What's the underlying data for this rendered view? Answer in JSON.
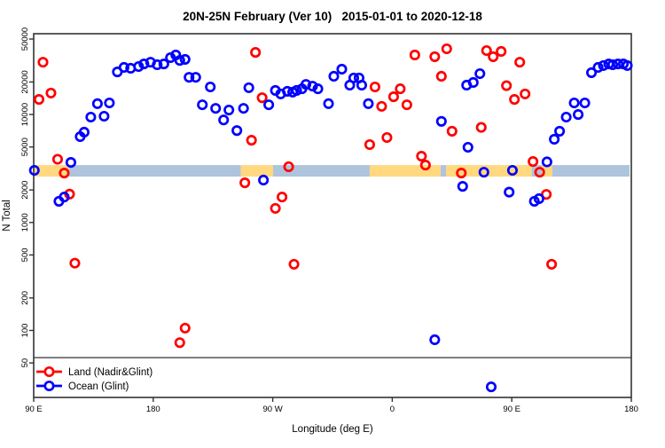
{
  "title": "20N-25N February (Ver 10)   2015-01-01 to 2020-12-18",
  "legend": [
    {
      "label": "Land (Nadir&Glint)",
      "color": "#ff0000"
    },
    {
      "label": "Ocean (Glint)",
      "color": "#0000ff"
    }
  ],
  "colors": {
    "land": "#ff0000",
    "ocean": "#0000ff",
    "band_land": "#ffd87f",
    "band_ocean": "#aec3dc",
    "axis": "#333333"
  },
  "chart_data": {
    "type": "scatter",
    "title": "20N-25N February (Ver 10)   2015-01-01 to 2020-12-18",
    "xlabel": "Longitude (deg E)",
    "ylabel": "N Total",
    "x_axis": {
      "range": [
        90,
        540
      ],
      "tick_lons": [
        90,
        180,
        270,
        360,
        450,
        540
      ],
      "tick_labels": [
        "90 E",
        "180",
        "90 W",
        "0",
        "90 E",
        "180"
      ]
    },
    "y_axis": {
      "scale": "log",
      "range": [
        24,
        56000
      ],
      "ticks": [
        50,
        100,
        200,
        500,
        1000,
        2000,
        5000,
        10000,
        20000,
        50000
      ],
      "tick_labels": [
        "50",
        "100",
        "200",
        "500",
        "1000",
        "2000",
        "5000",
        "10000",
        "20000",
        "50000"
      ]
    },
    "reference_line": {
      "value": 56
    },
    "band": {
      "value_top": 3400,
      "value_bottom": 2660,
      "segments": [
        {
          "from": 90.0,
          "to": 116.7,
          "type": "land"
        },
        {
          "from": 116.7,
          "to": 246.0,
          "type": "ocean"
        },
        {
          "from": 246.0,
          "to": 270.3,
          "type": "land"
        },
        {
          "from": 270.3,
          "to": 343.0,
          "type": "ocean"
        },
        {
          "from": 343.0,
          "to": 396.5,
          "type": "land"
        },
        {
          "from": 396.5,
          "to": 400.5,
          "type": "ocean"
        },
        {
          "from": 400.5,
          "to": 465.0,
          "type": "land"
        },
        {
          "from": 465.0,
          "to": 472.6,
          "type": "ocean"
        },
        {
          "from": 472.6,
          "to": 480.6,
          "type": "land"
        },
        {
          "from": 480.6,
          "to": 538.7,
          "type": "ocean"
        }
      ]
    },
    "series": [
      {
        "name": "Land (Nadir&Glint)",
        "color": "#ff0000",
        "points": [
          [
            97,
            30500
          ],
          [
            94,
            13800
          ],
          [
            103,
            15800
          ],
          [
            108,
            3850
          ],
          [
            113,
            2870
          ],
          [
            117,
            1830
          ],
          [
            121,
            420
          ],
          [
            200,
            77
          ],
          [
            204,
            105
          ],
          [
            249,
            2330
          ],
          [
            254,
            5780
          ],
          [
            257,
            37600
          ],
          [
            262,
            14300
          ],
          [
            272,
            1350
          ],
          [
            277,
            1720
          ],
          [
            282,
            3280
          ],
          [
            286,
            410
          ],
          [
            343,
            5260
          ],
          [
            347,
            18000
          ],
          [
            352,
            11900
          ],
          [
            356,
            6120
          ],
          [
            361,
            14600
          ],
          [
            366,
            17300
          ],
          [
            371,
            12300
          ],
          [
            377,
            35600
          ],
          [
            382,
            4110
          ],
          [
            385,
            3400
          ],
          [
            392,
            34300
          ],
          [
            397,
            22600
          ],
          [
            401,
            40600
          ],
          [
            405,
            7000
          ],
          [
            412,
            2870
          ],
          [
            427,
            7600
          ],
          [
            431,
            39100
          ],
          [
            436,
            34300
          ],
          [
            442,
            38400
          ],
          [
            446,
            18500
          ],
          [
            452,
            13800
          ],
          [
            456,
            30500
          ],
          [
            460,
            15500
          ],
          [
            466,
            3670
          ],
          [
            471,
            2920
          ],
          [
            476,
            1820
          ],
          [
            480,
            410
          ]
        ]
      },
      {
        "name": "Ocean (Glint)",
        "color": "#0000ff",
        "points": [
          [
            90.5,
            3040
          ],
          [
            109,
            1570
          ],
          [
            113,
            1720
          ],
          [
            118,
            3600
          ],
          [
            125,
            6240
          ],
          [
            128,
            6860
          ],
          [
            133,
            9460
          ],
          [
            138,
            12600
          ],
          [
            143,
            9640
          ],
          [
            147,
            12800
          ],
          [
            153,
            24800
          ],
          [
            158,
            27300
          ],
          [
            163,
            26800
          ],
          [
            169,
            27800
          ],
          [
            173,
            29400
          ],
          [
            178,
            30500
          ],
          [
            183,
            28900
          ],
          [
            188,
            29400
          ],
          [
            193,
            33600
          ],
          [
            197,
            35600
          ],
          [
            200,
            31700
          ],
          [
            204,
            32400
          ],
          [
            207,
            22100
          ],
          [
            212,
            22100
          ],
          [
            217,
            12300
          ],
          [
            223,
            18000
          ],
          [
            227,
            11400
          ],
          [
            233,
            8900
          ],
          [
            237,
            11000
          ],
          [
            243,
            7100
          ],
          [
            248,
            11400
          ],
          [
            252,
            17700
          ],
          [
            263,
            2470
          ],
          [
            267,
            12300
          ],
          [
            272,
            16700
          ],
          [
            276,
            15500
          ],
          [
            281,
            16400
          ],
          [
            285,
            16100
          ],
          [
            288,
            16700
          ],
          [
            292,
            17300
          ],
          [
            295,
            19000
          ],
          [
            300,
            18300
          ],
          [
            304,
            17300
          ],
          [
            312,
            12600
          ],
          [
            316,
            22600
          ],
          [
            322,
            26300
          ],
          [
            328,
            18700
          ],
          [
            331,
            21800
          ],
          [
            335,
            21800
          ],
          [
            337,
            18700
          ],
          [
            342,
            12600
          ],
          [
            392,
            82
          ],
          [
            397,
            8640
          ],
          [
            413,
            2160
          ],
          [
            416,
            18700
          ],
          [
            417,
            4970
          ],
          [
            421,
            19800
          ],
          [
            426,
            23900
          ],
          [
            429,
            2920
          ],
          [
            434.5,
            30
          ],
          [
            448,
            1910
          ],
          [
            450.5,
            3040
          ],
          [
            467,
            1570
          ],
          [
            470.5,
            1660
          ],
          [
            476.5,
            3640
          ],
          [
            482,
            5900
          ],
          [
            486,
            7000
          ],
          [
            491,
            9460
          ],
          [
            497,
            12800
          ],
          [
            500,
            10000
          ],
          [
            505,
            12800
          ],
          [
            510,
            24400
          ],
          [
            515,
            27300
          ],
          [
            519,
            28400
          ],
          [
            523,
            29400
          ],
          [
            526,
            28900
          ],
          [
            530,
            29400
          ],
          [
            534,
            29400
          ],
          [
            537,
            28400
          ]
        ]
      }
    ]
  }
}
